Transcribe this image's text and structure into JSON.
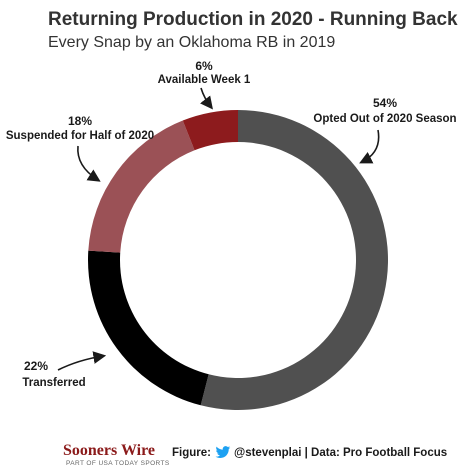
{
  "chart_data": {
    "type": "pie",
    "title": "Returning Production in 2020 - Running Back",
    "subtitle": "Every Snap by an Oklahoma RB in 2019",
    "slices": [
      {
        "label": "Opted Out of 2020 Season",
        "pct_label": "54%",
        "value": 54,
        "color": "#505050"
      },
      {
        "label": "Transferred",
        "pct_label": "22%",
        "value": 22,
        "color": "#000000"
      },
      {
        "label": "Suspended for Half of 2020",
        "pct_label": "18%",
        "value": 18,
        "color": "#9b5156"
      },
      {
        "label": "Available Week 1",
        "pct_label": "6%",
        "value": 6,
        "color": "#8d1b1d"
      }
    ],
    "donut": true
  },
  "footer": {
    "brand": "Sooners Wire",
    "brand_sub": "PART OF USA TODAY SPORTS",
    "credit_prefix": "Figure:",
    "credit_handle": "@stevenplai | Data: Pro Football Focus",
    "twitter_icon": "twitter-bird-icon",
    "twitter_color": "#1da1f2"
  }
}
